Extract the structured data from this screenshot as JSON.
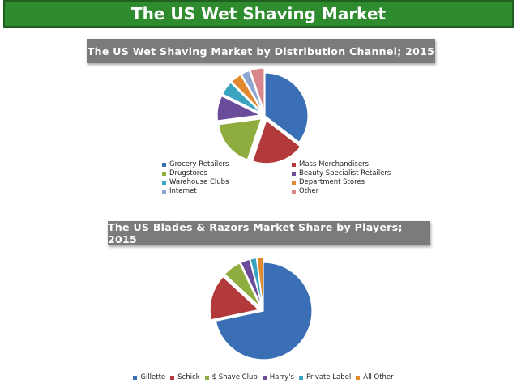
{
  "header": {
    "title": "The US Wet Shaving Market"
  },
  "chart_data": [
    {
      "type": "pie",
      "title": "The US Wet Shaving Market by Distribution Channel; 2015",
      "legend": "bottom",
      "categories": [
        "Grocery Retailers",
        "Mass Merchandisers",
        "Drugstores",
        "Beauty Specialist Retailers",
        "Warehouse Clubs",
        "Department Stores",
        "Internet",
        "Other"
      ],
      "values": [
        34,
        19,
        17,
        9,
        5,
        4,
        3,
        5
      ],
      "colors": [
        "#3a6fb5",
        "#b33a3a",
        "#8fad3f",
        "#6a4c9a",
        "#3aa3c0",
        "#e2882e",
        "#8ea6cf",
        "#d9878c"
      ],
      "exploded": [
        0,
        1,
        1,
        1,
        1,
        1,
        1,
        1
      ]
    },
    {
      "type": "pie",
      "title": "The US Blades & Razors Market Share by Players; 2015",
      "legend": "bottom",
      "categories": [
        "Gillette",
        "Schick",
        "$ Shave Club",
        "Harry's",
        "Private Label",
        "All Other"
      ],
      "values": [
        71,
        15,
        6,
        3,
        2,
        2
      ],
      "colors": [
        "#3a6fb5",
        "#b33a3a",
        "#8fad3f",
        "#6a4c9a",
        "#3aa3c0",
        "#e2882e"
      ],
      "exploded": [
        0,
        1,
        1,
        1,
        1,
        1
      ]
    }
  ]
}
